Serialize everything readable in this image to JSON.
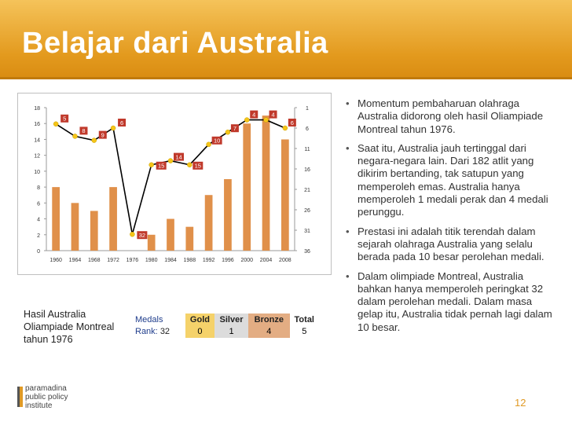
{
  "header": {
    "title": "Belajar dari Australia"
  },
  "bullets": [
    "Momentum pembaharuan olahraga Australia didorong oleh hasil Oliampiade Montreal tahun 1976.",
    "Saat itu, Australia jauh tertinggal dari negara-negara lain. Dari 182 atlit yang dikirim bertanding, tak satupun yang memperoleh emas. Australia hanya memperoleh 1 medali perak dan 4 medali perunggu.",
    "Prestasi ini adalah titik terendah dalam sejarah olahraga Australia yang selalu berada pada 10 besar perolehan medali.",
    "Dalam olimpiade Montreal, Australia bahkan hanya memperoleh peringkat 32 dalam perolehan medali. Dalam masa gelap itu, Australia tidak pernah lagi dalam 10 besar."
  ],
  "caption": "Hasil Australia Oliampiade Montreal tahun 1976",
  "medals": {
    "headers": {
      "medals": "Medals",
      "gold": "Gold",
      "silver": "Silver",
      "bronze": "Bronze",
      "total": "Total"
    },
    "rank_label": "Rank:",
    "rank": "32",
    "gold": "0",
    "silver": "1",
    "bronze": "4",
    "total": "5"
  },
  "logo": {
    "line1": "paramadina",
    "line2": "public policy",
    "line3": "institute"
  },
  "page_number": "12",
  "colors": {
    "header": "#e8a432",
    "bar": "#e0904a",
    "line": "#000000",
    "marker": "#f5c518",
    "rank_box": "#c0392b"
  },
  "chart_data": {
    "type": "bar",
    "categories": [
      "1960",
      "1964",
      "1968",
      "1972",
      "1976",
      "1980",
      "1984",
      "1988",
      "1992",
      "1996",
      "2000",
      "2004",
      "2008"
    ],
    "series": [
      {
        "values": [
          8,
          6,
          5,
          8,
          0,
          2,
          4,
          3,
          7,
          9,
          16,
          17,
          14
        ]
      },
      {
        "values": [
          5,
          8,
          9,
          6,
          32,
          15,
          14,
          15,
          10,
          7,
          4,
          4,
          6
        ]
      }
    ],
    "y_left": {
      "ylim": [
        0,
        18
      ],
      "ticks": [
        "0",
        "2",
        "4",
        "6",
        "8",
        "10",
        "12",
        "14",
        "16",
        "18"
      ]
    },
    "y_right": {
      "ylim": [
        36,
        1
      ],
      "ticks": [
        "1",
        "6",
        "11",
        "16",
        "21",
        "26",
        "31",
        "36"
      ],
      "reversed": true
    },
    "grid": false
  }
}
